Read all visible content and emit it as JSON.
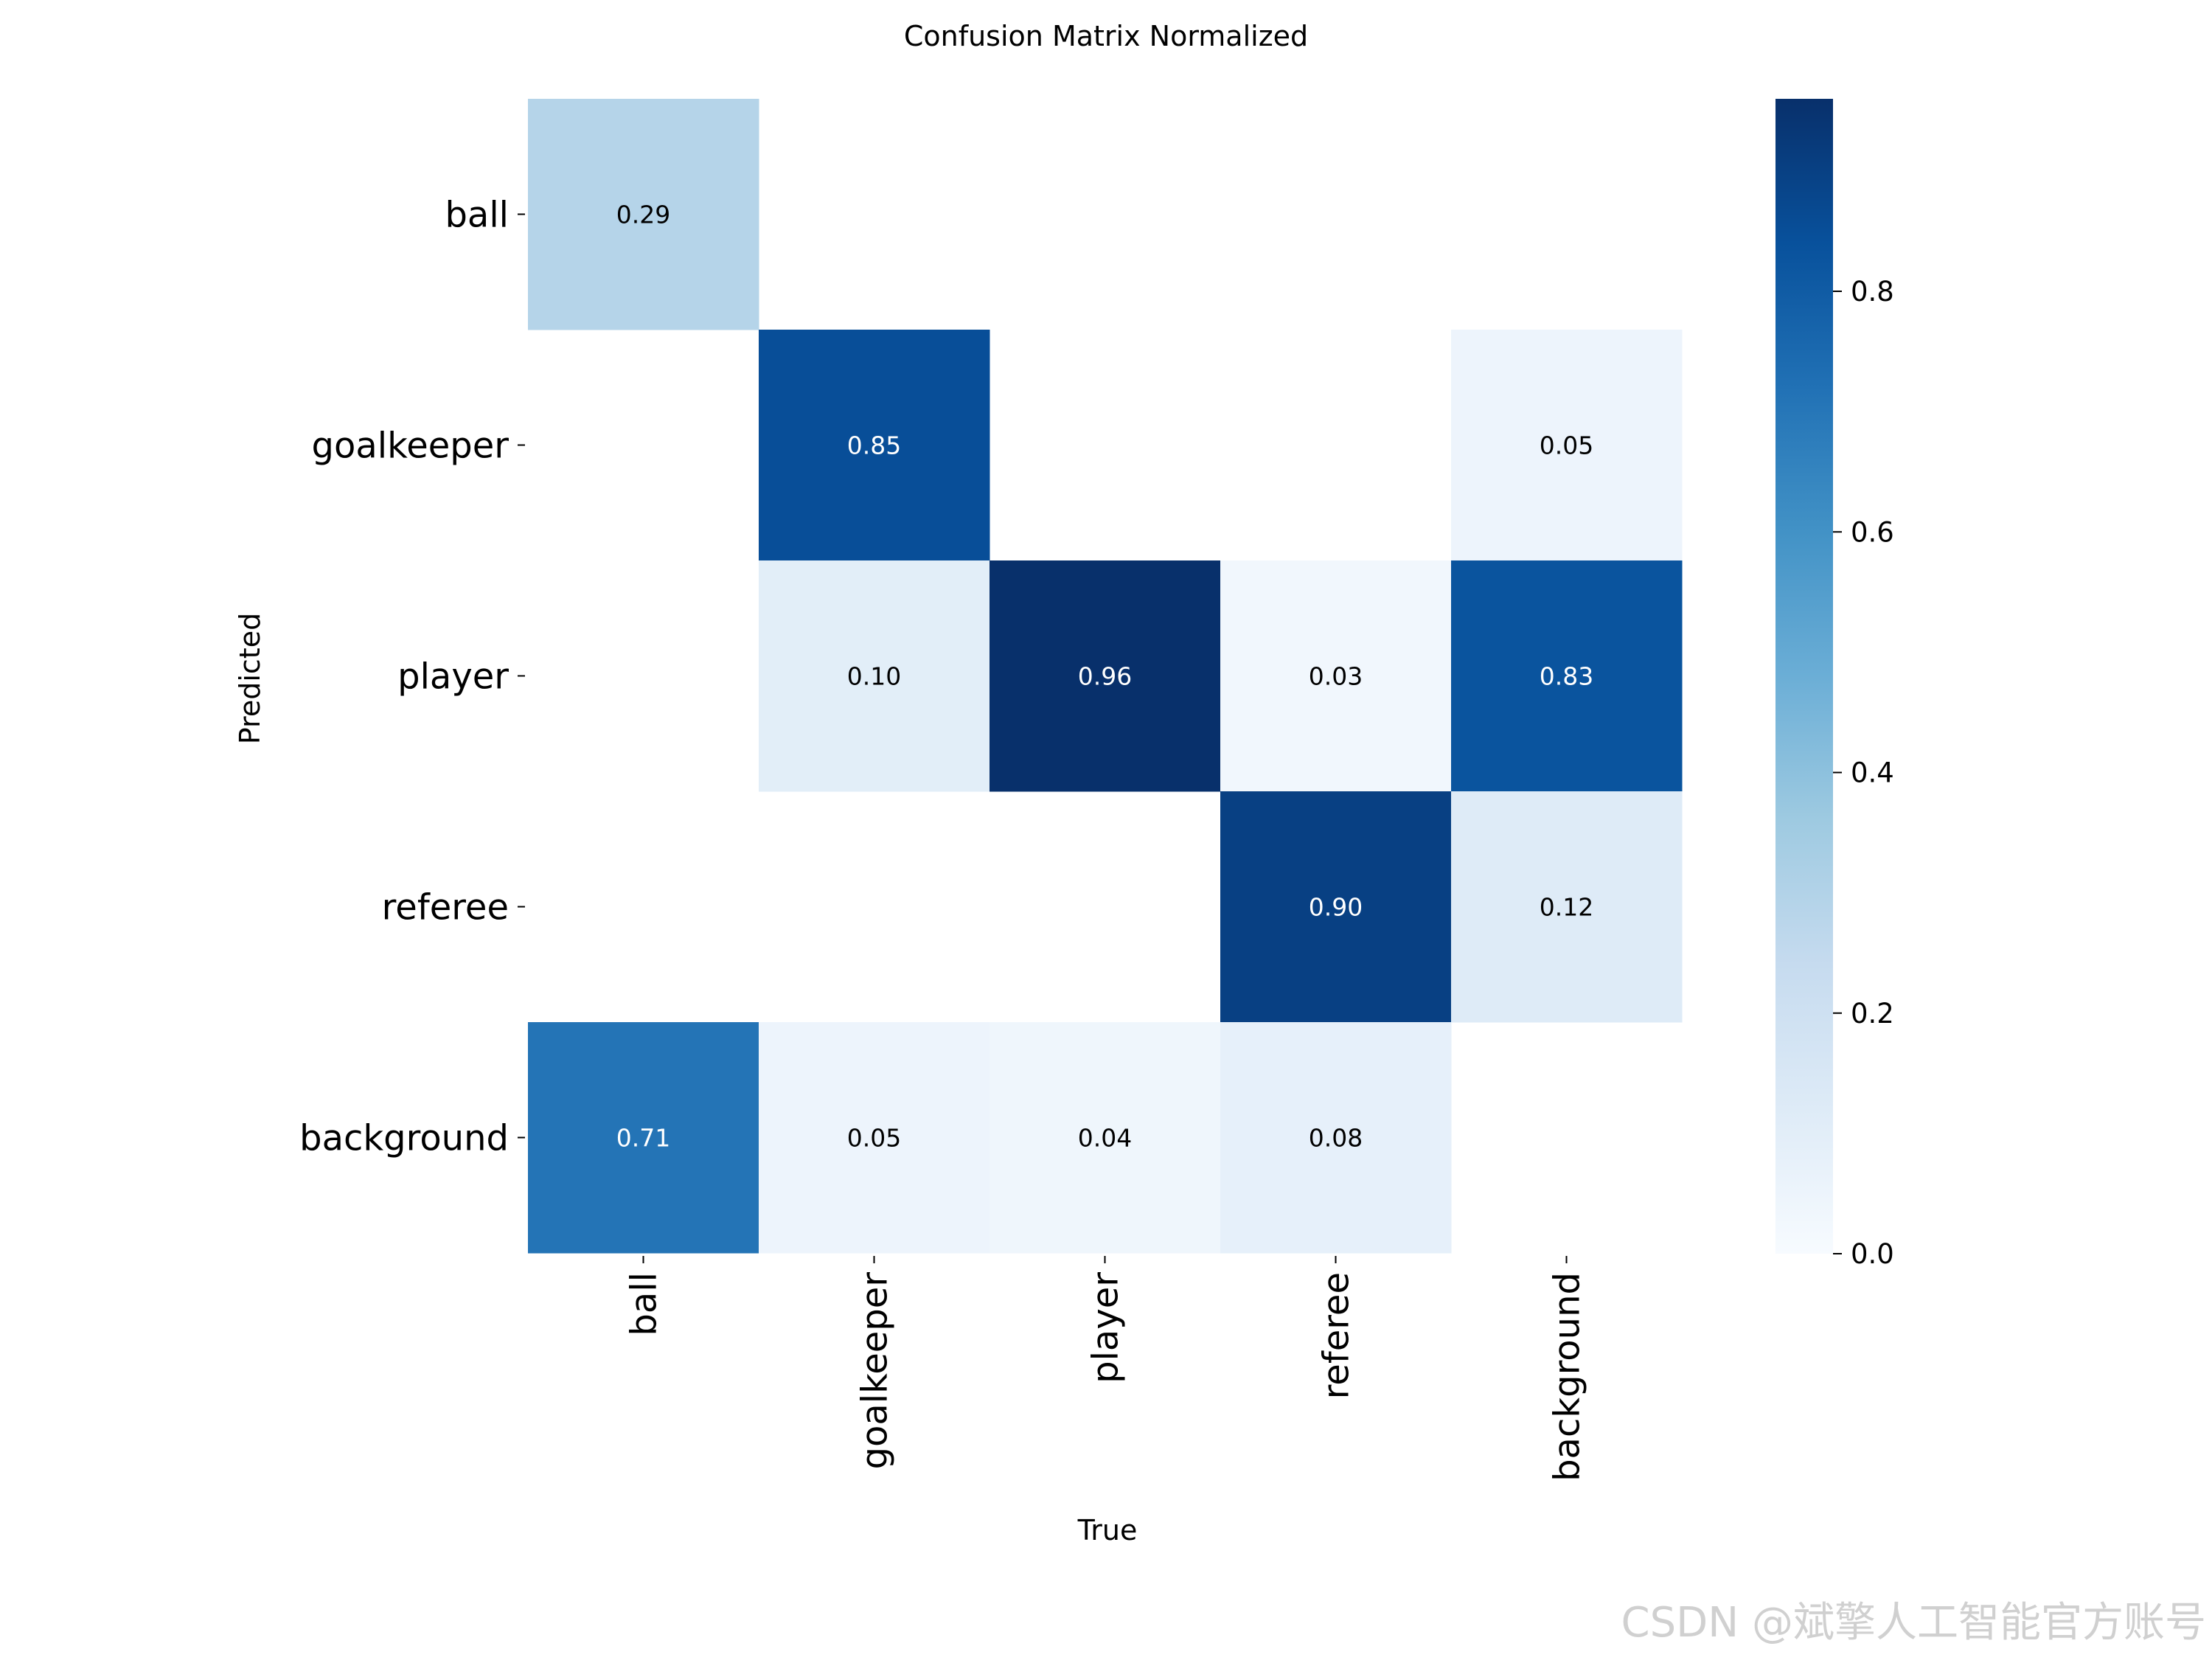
{
  "chart_data": {
    "type": "heatmap",
    "title": "Confusion Matrix Normalized",
    "xlabel": "True",
    "ylabel": "Predicted",
    "x_categories": [
      "ball",
      "goalkeeper",
      "player",
      "referee",
      "background"
    ],
    "y_categories": [
      "ball",
      "goalkeeper",
      "player",
      "referee",
      "background"
    ],
    "values": [
      [
        0.29,
        null,
        null,
        null,
        null
      ],
      [
        null,
        0.85,
        null,
        null,
        0.05
      ],
      [
        null,
        0.1,
        0.96,
        0.03,
        0.83
      ],
      [
        null,
        null,
        null,
        0.9,
        0.12
      ],
      [
        0.71,
        0.05,
        0.04,
        0.08,
        null
      ]
    ],
    "colormap": "Blues",
    "colorbar": {
      "range": [
        0.0,
        0.96
      ],
      "ticks": [
        0.0,
        0.2,
        0.4,
        0.6,
        0.8
      ],
      "tick_labels": [
        "0.0",
        "0.2",
        "0.4",
        "0.6",
        "0.8"
      ]
    },
    "grid": false
  },
  "watermark": "CSDN @斌擎人工智能官方账号"
}
